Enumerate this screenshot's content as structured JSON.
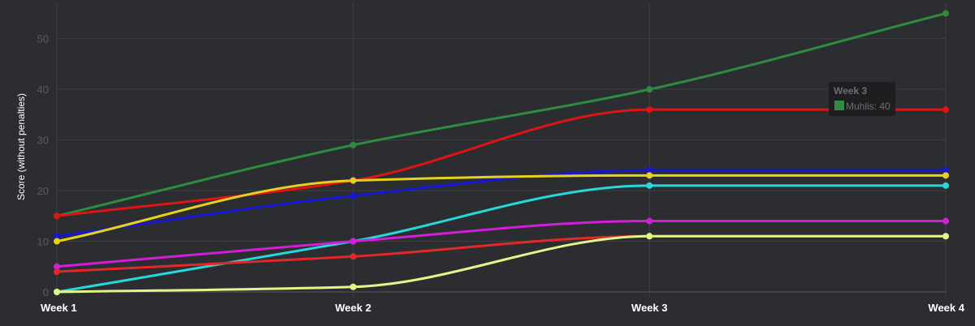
{
  "chart_data": {
    "type": "line",
    "ylabel": "Score (without penalties)",
    "xlabel": "",
    "categories": [
      "Week 1",
      "Week 2",
      "Week 3",
      "Week 4"
    ],
    "ylim": [
      0,
      57
    ],
    "yticks": [
      0,
      10,
      20,
      30,
      40,
      50
    ],
    "grid": true,
    "series": [
      {
        "color": "#2e8b40",
        "values": [
          15,
          29,
          40,
          55
        ]
      },
      {
        "color": "#e01414",
        "values": [
          15,
          22,
          36,
          36
        ]
      },
      {
        "color": "#1616d6",
        "values": [
          11,
          19,
          24,
          24
        ]
      },
      {
        "color": "#e6d21e",
        "values": [
          10,
          22,
          23,
          23
        ]
      },
      {
        "color": "#26d8dc",
        "values": [
          0,
          10,
          21,
          21
        ]
      },
      {
        "color": "#d21ed6",
        "values": [
          5,
          10,
          14,
          14
        ]
      },
      {
        "color": "#e22828",
        "values": [
          4,
          7,
          11,
          11
        ]
      },
      {
        "color": "#e2f58a",
        "values": [
          0,
          1,
          11,
          11
        ]
      }
    ],
    "tooltip": {
      "title": "Week 3",
      "text": "Muhlis: 40",
      "swatch_color": "#2e8b40"
    }
  }
}
